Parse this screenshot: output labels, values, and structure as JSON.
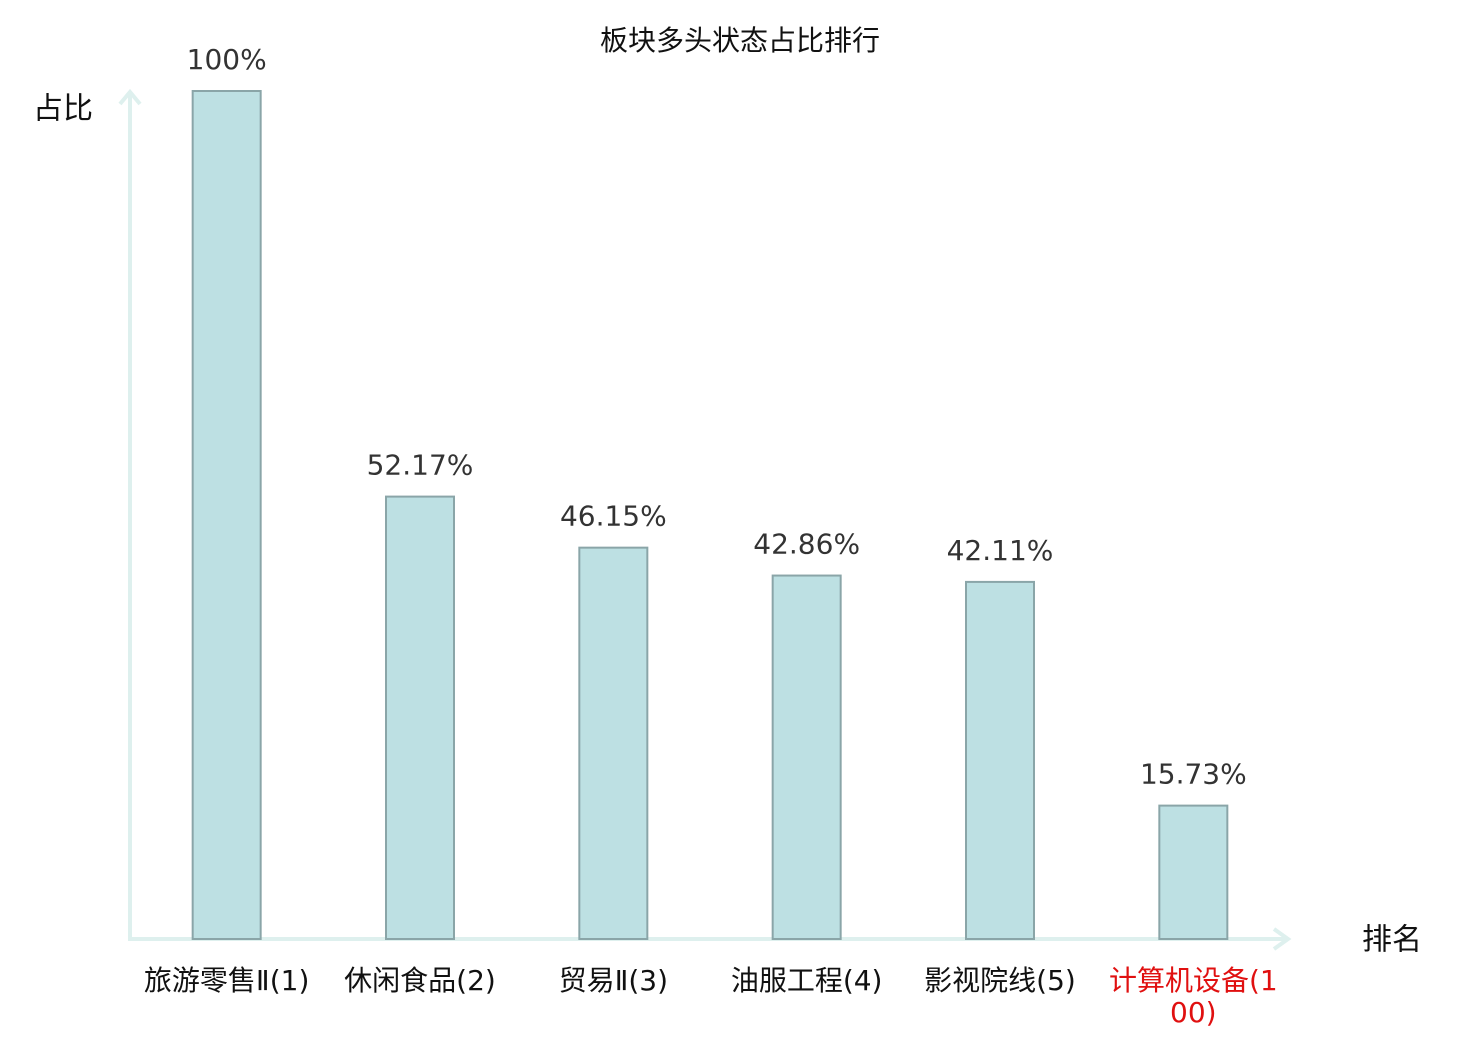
{
  "chart_data": {
    "type": "bar",
    "title": "板块多头状态占比排行",
    "y_label": "占比",
    "x_label": "排名",
    "categories": [
      "旅游零售Ⅱ(1)",
      "休闲食品(2)",
      "贸易Ⅱ(3)",
      "油服工程(4)",
      "影视院线(5)",
      "计算机设备(100)"
    ],
    "category_colors": [
      "#111111",
      "#111111",
      "#111111",
      "#111111",
      "#111111",
      "#e01010"
    ],
    "values": [
      100,
      52.17,
      46.15,
      42.86,
      42.11,
      15.73
    ],
    "value_labels": [
      "100%",
      "52.17%",
      "46.15%",
      "42.86%",
      "42.11%",
      "15.73%"
    ],
    "color": "#bde0e3",
    "edge_color": "#8aa5a8",
    "ylim": [
      0,
      100
    ]
  }
}
